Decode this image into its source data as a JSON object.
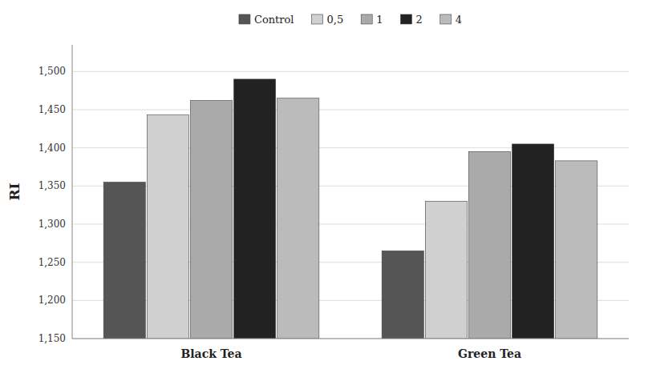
{
  "chart_data": {
    "type": "bar",
    "categories": [
      "Black Tea",
      "Green Tea"
    ],
    "series": [
      {
        "name": "Control",
        "color": "#555555",
        "values": [
          1.355,
          1.265
        ]
      },
      {
        "name": "0,5",
        "color": "#d0d0d0",
        "values": [
          1.443,
          1.33
        ]
      },
      {
        "name": "1",
        "color": "#aaaaaa",
        "values": [
          1.462,
          1.395
        ]
      },
      {
        "name": "2",
        "color": "#222222",
        "values": [
          1.49,
          1.405
        ]
      },
      {
        "name": "4",
        "color": "#bbbbbb",
        "values": [
          1.465,
          1.383
        ]
      }
    ],
    "y_label": "RI",
    "ylim": [
      1.15,
      1.535
    ],
    "yticks": [
      {
        "value": 1.15,
        "label": "1,150"
      },
      {
        "value": 1.2,
        "label": "1,200"
      },
      {
        "value": 1.25,
        "label": "1,250"
      },
      {
        "value": 1.3,
        "label": "1,300"
      },
      {
        "value": 1.35,
        "label": "1,350"
      },
      {
        "value": 1.4,
        "label": "1,400"
      },
      {
        "value": 1.45,
        "label": "1,450"
      },
      {
        "value": 1.5,
        "label": "1,500"
      }
    ],
    "grid": true,
    "legend": "top"
  }
}
